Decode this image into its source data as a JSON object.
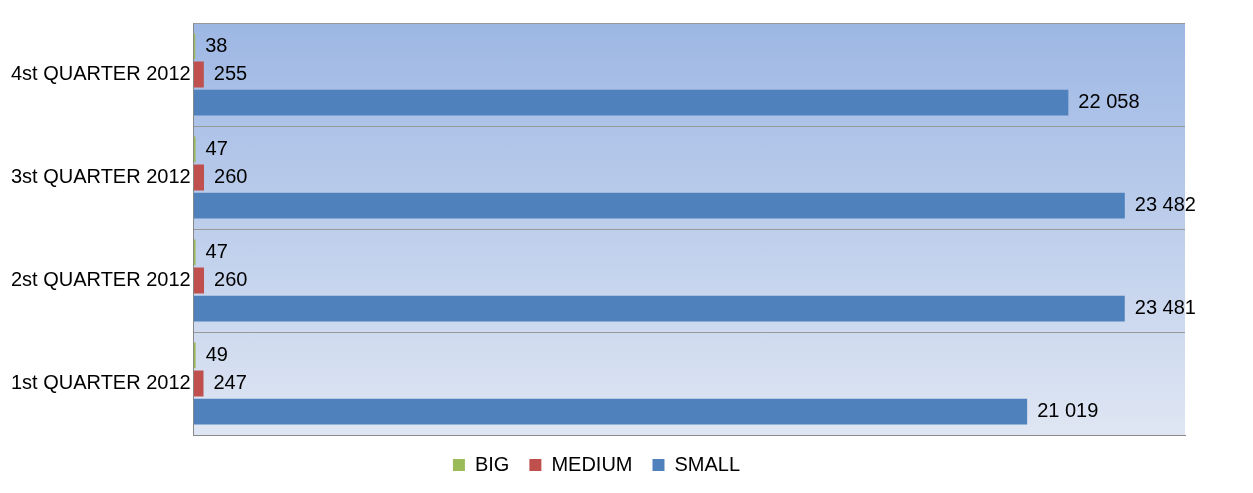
{
  "chart_data": {
    "type": "bar",
    "orientation": "horizontal",
    "categories": [
      "4st QUARTER 2012",
      "3st QUARTER 2012",
      "2st QUARTER 2012",
      "1st QUARTER 2012"
    ],
    "series": [
      {
        "name": "BIG",
        "color": "#9bbb59",
        "values": [
          38,
          47,
          47,
          49
        ],
        "value_labels": [
          "38",
          "47",
          "47",
          "49"
        ]
      },
      {
        "name": "MEDIUM",
        "color": "#c0504d",
        "values": [
          255,
          260,
          260,
          247
        ],
        "value_labels": [
          "255",
          "260",
          "260",
          "247"
        ]
      },
      {
        "name": "SMALL",
        "color": "#4f81bd",
        "values": [
          22058,
          23482,
          23481,
          21019
        ],
        "value_labels": [
          "22 058",
          "23 482",
          "23 481",
          "21 019"
        ]
      }
    ],
    "grid": "y",
    "legend": "bottom"
  }
}
